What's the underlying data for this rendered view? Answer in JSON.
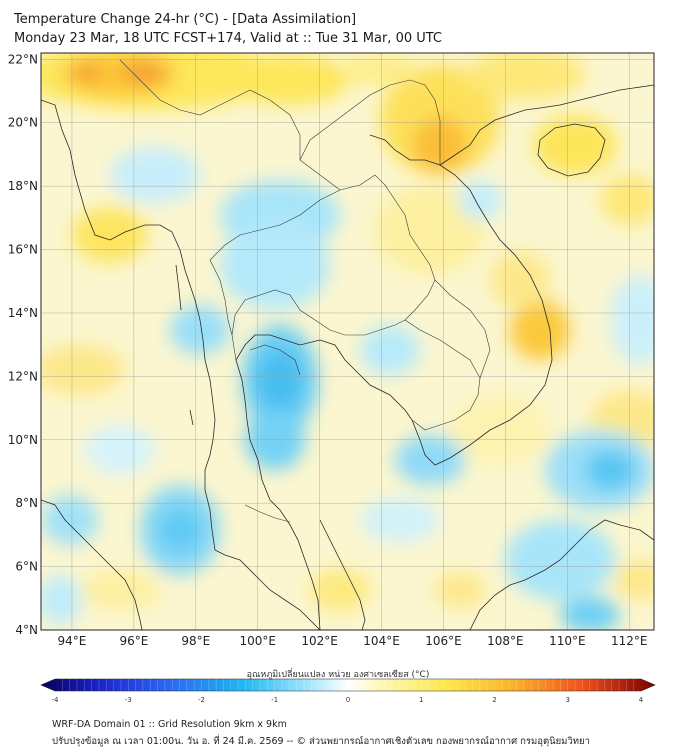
{
  "header": {
    "title_line1": "Temperature Change 24-hr (°C) - [Data Assimilation]",
    "title_line2": "Monday 23 Mar, 18 UTC FCST+174, Valid at :: Tue 31 Mar, 00 UTC"
  },
  "map": {
    "lat_ticks": [
      "22°N",
      "20°N",
      "18°N",
      "16°N",
      "14°N",
      "12°N",
      "10°N",
      "8°N",
      "6°N",
      "4°N"
    ],
    "lon_ticks": [
      "94°E",
      "96°E",
      "98°E",
      "100°E",
      "102°E",
      "104°E",
      "106°E",
      "108°E",
      "110°E",
      "112°E"
    ],
    "lat_range": [
      4,
      22.2
    ],
    "lon_range": [
      93,
      112.8
    ],
    "grid": true
  },
  "colorbar": {
    "label": "อุณหภูมิเปลี่ยนแปลง หน่วย องศาเซลเซียส (°C)",
    "ticks": [
      "-4",
      "-3",
      "-2",
      "-1",
      "0",
      "1",
      "2",
      "3",
      "4"
    ],
    "range": [
      -4,
      4
    ]
  },
  "footer": {
    "line1": "WRF-DA Domain 01 :: Grid Resolution 9km x 9km",
    "line2": "ปรับปรุงข้อมูล ณ เวลา 01:00น. วัน อ. ที่ 24 มี.ค. 2569 -- © ส่วนพยากรณ์อากาศเชิงตัวเลข กองพยากรณ์อากาศ กรมอุตุนิยมวิทยา"
  }
}
